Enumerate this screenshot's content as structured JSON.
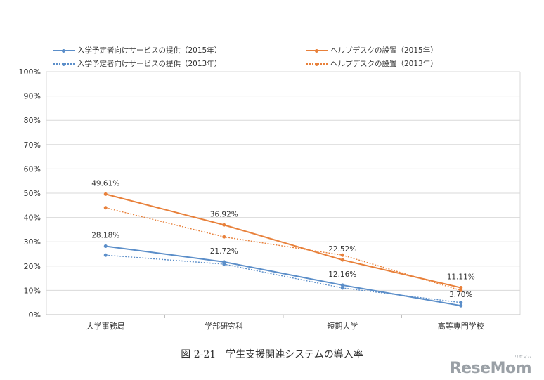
{
  "chart_data": {
    "type": "line",
    "categories": [
      "大学事務局",
      "学部研究科",
      "短期大学",
      "高等専門学校"
    ],
    "ylim": [
      0,
      100
    ],
    "yticks": [
      "0%",
      "10%",
      "20%",
      "30%",
      "40%",
      "50%",
      "60%",
      "70%",
      "80%",
      "90%",
      "100%"
    ],
    "grid": true,
    "legend_position": "top",
    "series": [
      {
        "name": "入学予定者向けサービスの提供（2015年）",
        "values": [
          28.18,
          21.72,
          12.16,
          3.7
        ],
        "color": "#5b8ec9",
        "dash": "solid",
        "labels": [
          "28.18%",
          "21.72%",
          "12.16%",
          "3.70%"
        ]
      },
      {
        "name": "入学予定者向けサービスの提供（2013年）",
        "values": [
          24.5,
          20.8,
          11.0,
          5.0
        ],
        "color": "#5b8ec9",
        "dash": "dotted"
      },
      {
        "name": "ヘルプデスクの設置（2015年）",
        "values": [
          49.61,
          36.92,
          22.52,
          11.11
        ],
        "color": "#e8803a",
        "dash": "solid",
        "labels": [
          "49.61%",
          "36.92%",
          "22.52%",
          "11.11%"
        ]
      },
      {
        "name": "ヘルプデスクの設置（2013年）",
        "values": [
          44.0,
          32.0,
          24.5,
          10.0
        ],
        "color": "#e8803a",
        "dash": "dotted"
      }
    ]
  },
  "caption": "図 2-21　学生支援関連システムの導入率",
  "watermark": "ReseMom",
  "watermark_sub": "リセマム"
}
